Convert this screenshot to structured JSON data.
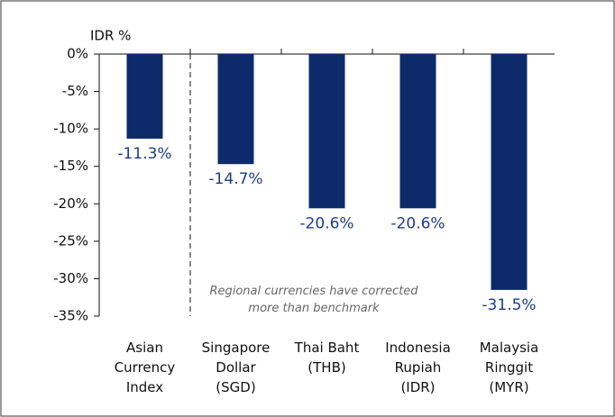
{
  "chart_data": {
    "type": "bar",
    "y_label": "IDR %",
    "categories": [
      "Asian\nCurrency\nIndex",
      "Singapore\nDollar\n(SGD)",
      "Thai Baht\n(THB)",
      "Indonesia\nRupiah\n(IDR)",
      "Malaysia\nRinggit\n(MYR)"
    ],
    "values": [
      -11.3,
      -14.7,
      -20.6,
      -20.6,
      -31.5
    ],
    "value_labels": [
      "-11.3%",
      "-14.7%",
      "-20.6%",
      "-20.6%",
      "-31.5%"
    ],
    "color": "#0d2b6b",
    "ylim": [
      -35,
      0
    ],
    "yticks": [
      {
        "value": 0,
        "label": "0%"
      },
      {
        "value": -5,
        "label": "-5%"
      },
      {
        "value": -10,
        "label": "-10%"
      },
      {
        "value": -15,
        "label": "-15%"
      },
      {
        "value": -20,
        "label": "-20%"
      },
      {
        "value": -25,
        "label": "-25%"
      },
      {
        "value": -30,
        "label": "-30%"
      },
      {
        "value": -35,
        "label": "-35%"
      }
    ],
    "annotation": "Regional currencies have corrected\nmore than benchmark"
  }
}
